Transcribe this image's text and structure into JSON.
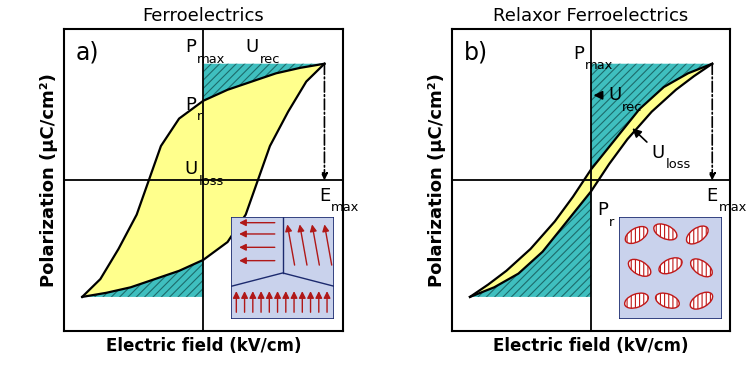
{
  "chart_data": [
    {
      "type": "line",
      "title": "Ferroelectrics",
      "x_label": "Electric field (kV/cm)",
      "y_label": "Polarization (μC/cm²)",
      "xlim": [
        -1.15,
        1.15
      ],
      "ylim": [
        -1.1,
        1.1
      ],
      "xticks": [],
      "yticks": [],
      "tick_labels": false,
      "series": [
        {
          "color": "#000000",
          "x": [
            1.0,
            0.8,
            0.6,
            0.4,
            0.2,
            0.0,
            -0.2,
            -0.35,
            -0.45,
            -0.55,
            -0.7,
            -0.85,
            -1.0
          ],
          "values": [
            0.85,
            0.82,
            0.78,
            0.72,
            0.66,
            0.58,
            0.45,
            0.25,
            0.0,
            -0.25,
            -0.5,
            -0.72,
            -0.85
          ]
        },
        {
          "color": "#000000",
          "x": [
            -1.0,
            -0.8,
            -0.6,
            -0.4,
            -0.2,
            0.0,
            0.2,
            0.35,
            0.45,
            0.55,
            0.7,
            0.85,
            1.0
          ],
          "values": [
            -0.85,
            -0.82,
            -0.78,
            -0.72,
            -0.66,
            -0.58,
            -0.45,
            -0.25,
            0.0,
            0.25,
            0.5,
            0.72,
            0.85
          ]
        }
      ],
      "annotations": [
        {
          "text": "a)"
        },
        {
          "text": "P",
          "subscript": "max"
        },
        {
          "text": "P",
          "subscript": "r"
        },
        {
          "text": "U",
          "subscript": "rec"
        },
        {
          "text": "U",
          "subscript": "loss"
        },
        {
          "text": "E",
          "subscript": "max"
        }
      ]
    },
    {
      "type": "line",
      "title": "Relaxor Ferroelectrics",
      "x_label": "Electric field (kV/cm)",
      "y_label": "Polarization (μC/cm²)",
      "xlim": [
        -1.15,
        1.15
      ],
      "ylim": [
        -1.1,
        1.1
      ],
      "xticks": [],
      "yticks": [],
      "tick_labels": false,
      "series": [
        {
          "color": "#000000",
          "x": [
            1.0,
            0.8,
            0.6,
            0.4,
            0.2,
            0.0,
            -0.15,
            -0.3,
            -0.5,
            -0.7,
            -0.85,
            -1.0
          ],
          "values": [
            0.85,
            0.78,
            0.68,
            0.52,
            0.3,
            0.08,
            -0.12,
            -0.3,
            -0.5,
            -0.66,
            -0.76,
            -0.85
          ]
        },
        {
          "color": "#000000",
          "x": [
            -1.0,
            -0.8,
            -0.6,
            -0.4,
            -0.2,
            0.0,
            0.15,
            0.3,
            0.5,
            0.7,
            0.85,
            1.0
          ],
          "values": [
            -0.85,
            -0.78,
            -0.68,
            -0.52,
            -0.3,
            -0.08,
            0.12,
            0.3,
            0.5,
            0.66,
            0.76,
            0.85
          ]
        }
      ],
      "annotations": [
        {
          "text": "b)"
        },
        {
          "text": "P",
          "subscript": "max"
        },
        {
          "text": "U",
          "subscript": "rec"
        },
        {
          "text": "P",
          "subscript": "r"
        },
        {
          "text": "U",
          "subscript": "loss"
        },
        {
          "text": "E",
          "subscript": "max"
        }
      ]
    }
  ]
}
